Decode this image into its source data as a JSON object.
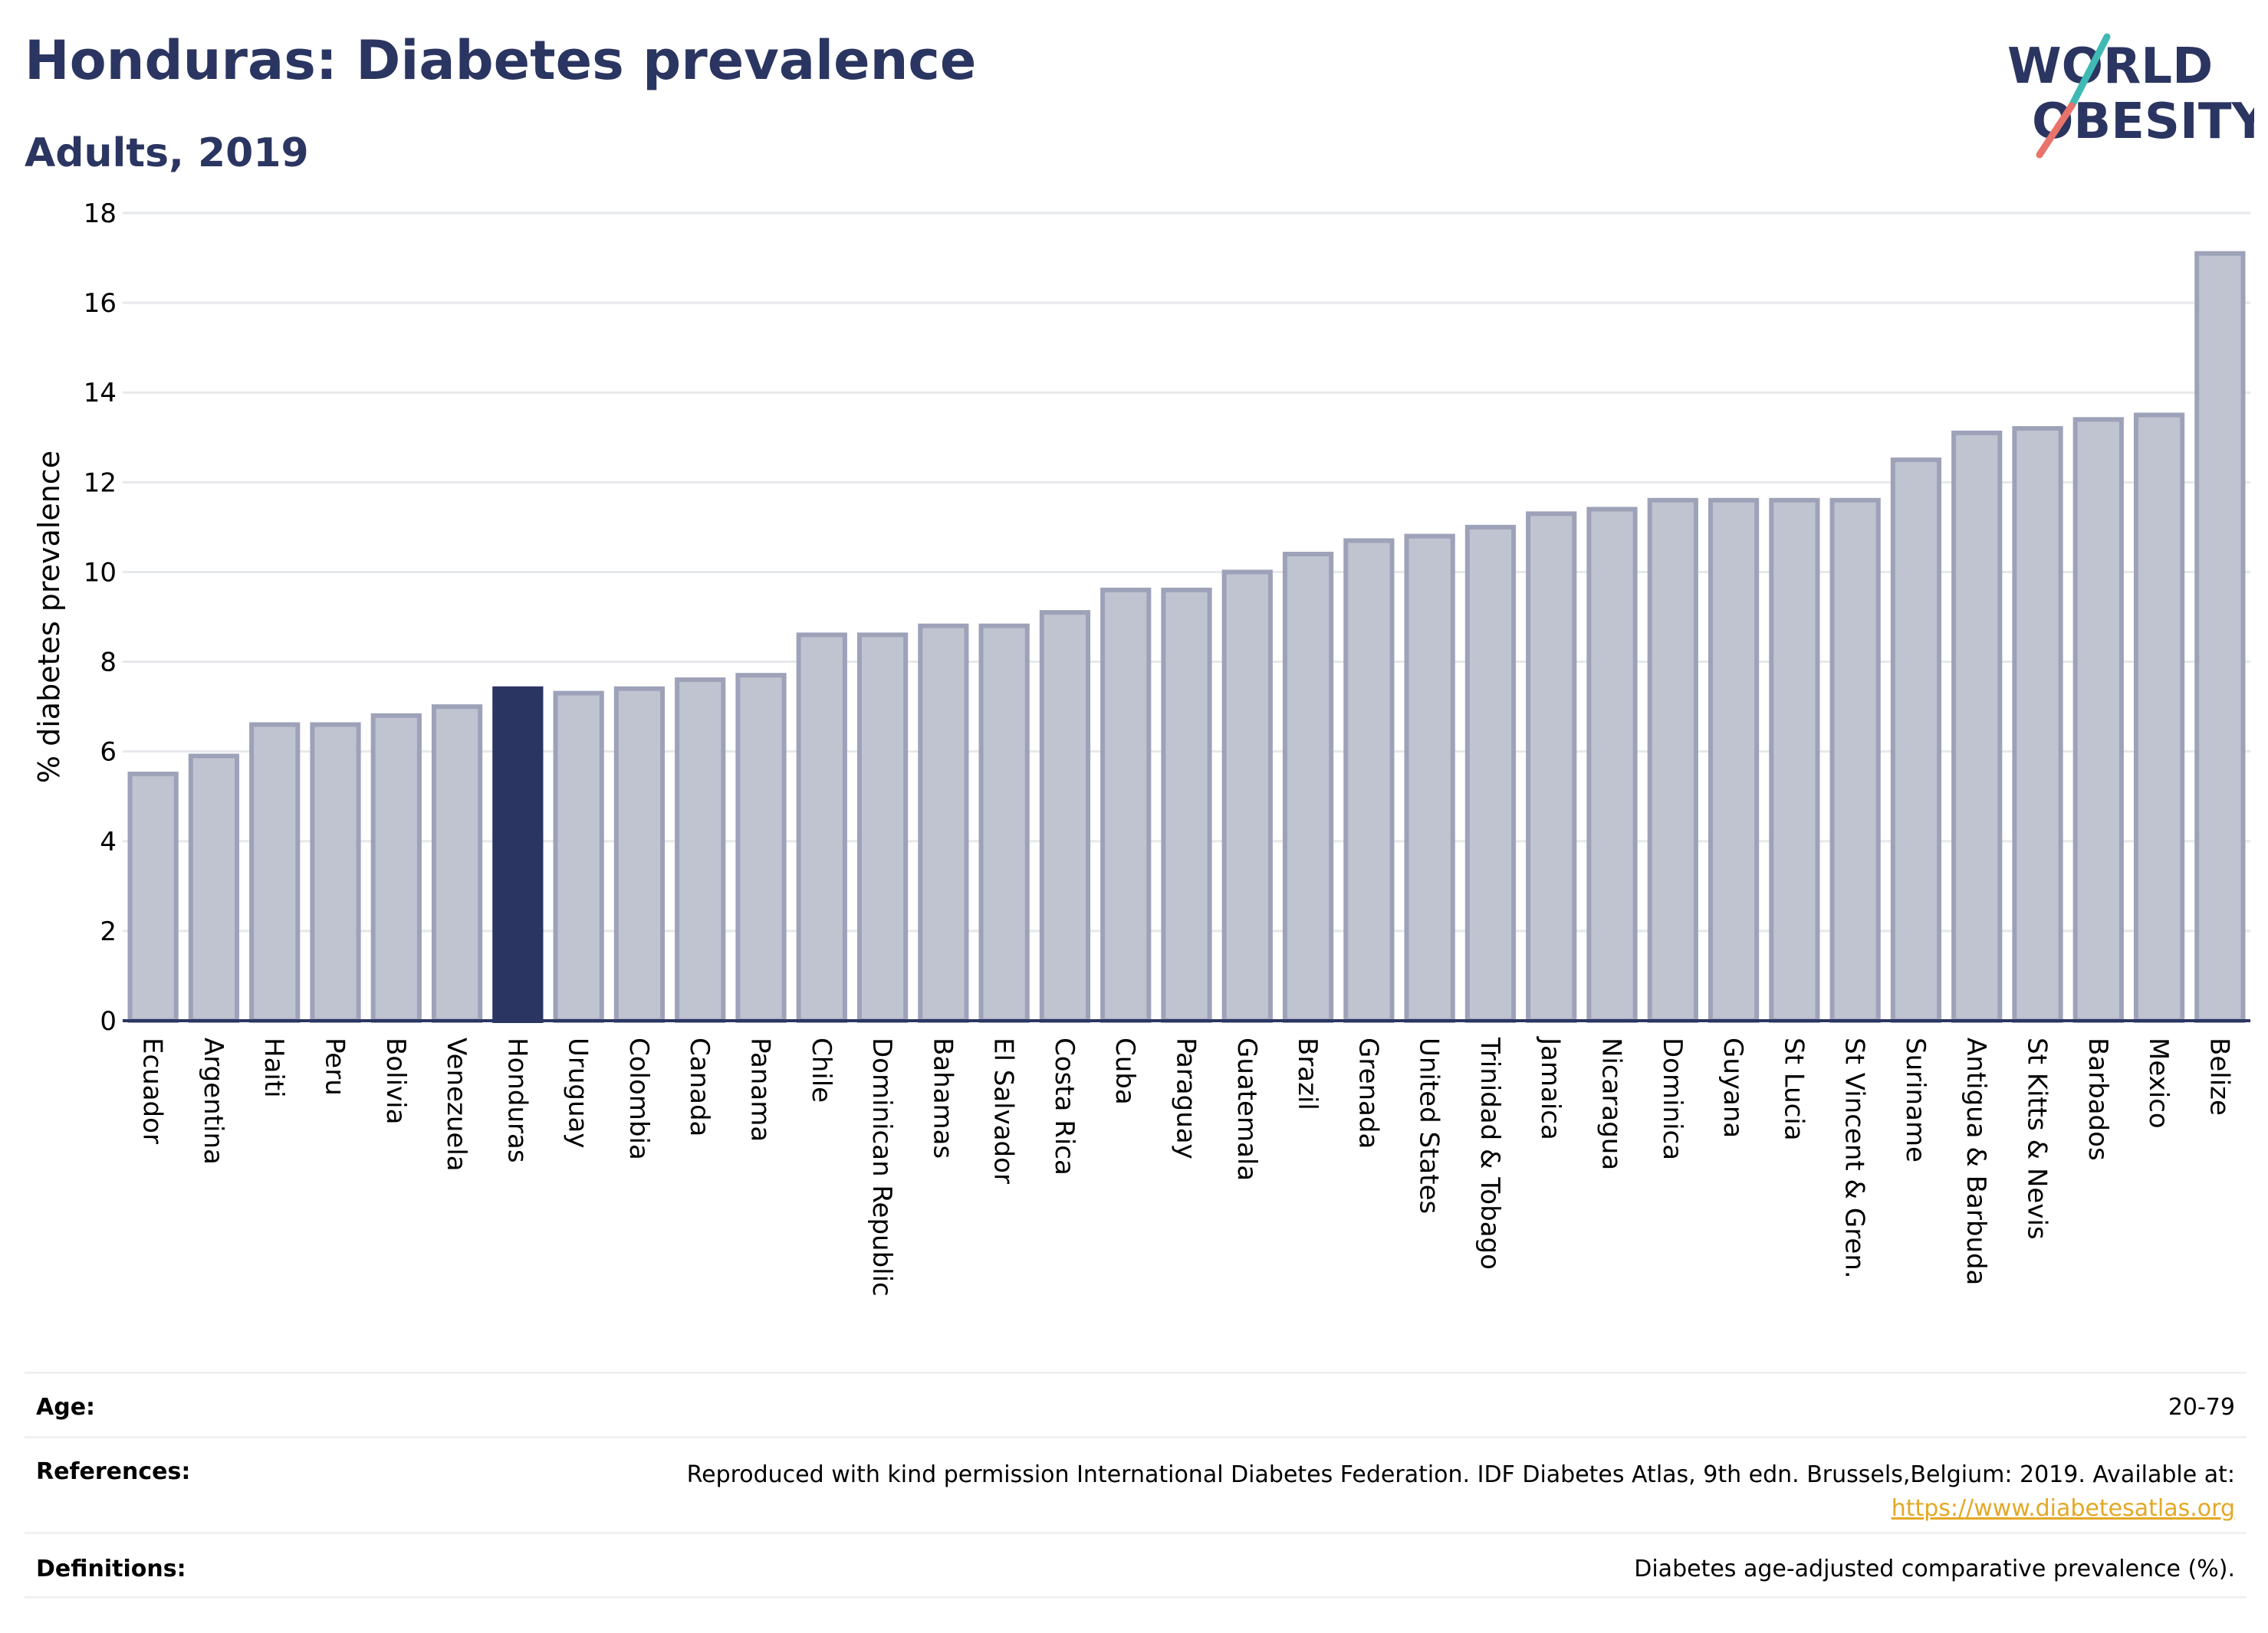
{
  "header": {
    "title": "Honduras: Diabetes prevalence",
    "subtitle": "Adults, 2019"
  },
  "logo": {
    "text_line1": "WORLD",
    "text_line2": "OBESITY",
    "color_text": "#2b3561",
    "color_slash_teal": "#3fb9b3",
    "color_slash_coral": "#e8736a"
  },
  "colors": {
    "bar_default": "#c0c3d0",
    "bar_border": "#9ea2b8",
    "bar_highlight": "#2b3561",
    "grid": "#e6e8ec",
    "axis": "#2b3561"
  },
  "chart_data": {
    "type": "bar",
    "ylabel": "% diabetes prevalence",
    "ylim": [
      0,
      18
    ],
    "yticks": [
      0,
      2,
      4,
      6,
      8,
      10,
      12,
      14,
      16,
      18
    ],
    "grid": true,
    "highlight": "Honduras",
    "categories": [
      "Ecuador",
      "Argentina",
      "Haiti",
      "Peru",
      "Bolivia",
      "Venezuela",
      "Honduras",
      "Uruguay",
      "Colombia",
      "Canada",
      "Panama",
      "Chile",
      "Dominican Republic",
      "Bahamas",
      "El Salvador",
      "Costa Rica",
      "Cuba",
      "Paraguay",
      "Guatemala",
      "Brazil",
      "Grenada",
      "United States",
      "Trinidad & Tobago",
      "Jamaica",
      "Nicaragua",
      "Dominica",
      "Guyana",
      "St Lucia",
      "St Vincent & Gren.",
      "Suriname",
      "Antigua & Barbuda",
      "St Kitts & Nevis",
      "Barbados",
      "Mexico",
      "Belize"
    ],
    "values": [
      5.5,
      5.9,
      6.6,
      6.6,
      6.8,
      7.0,
      7.4,
      7.3,
      7.4,
      7.6,
      7.7,
      8.6,
      8.6,
      8.8,
      8.8,
      9.1,
      9.6,
      9.6,
      10.0,
      10.4,
      10.7,
      10.8,
      11.0,
      11.3,
      11.4,
      11.6,
      11.6,
      11.6,
      11.6,
      12.5,
      13.1,
      13.2,
      13.4,
      13.5,
      17.1
    ]
  },
  "meta": {
    "age_label": "Age:",
    "age_value": "20-79",
    "references_label": "References:",
    "references_value": "Reproduced with kind permission International Diabetes Federation. IDF Diabetes Atlas, 9th edn. Brussels,Belgium: 2019. Available at:",
    "references_link": "https://www.diabetesatlas.org",
    "definitions_label": "Definitions:",
    "definitions_value": "Diabetes age-adjusted comparative prevalence (%)."
  }
}
